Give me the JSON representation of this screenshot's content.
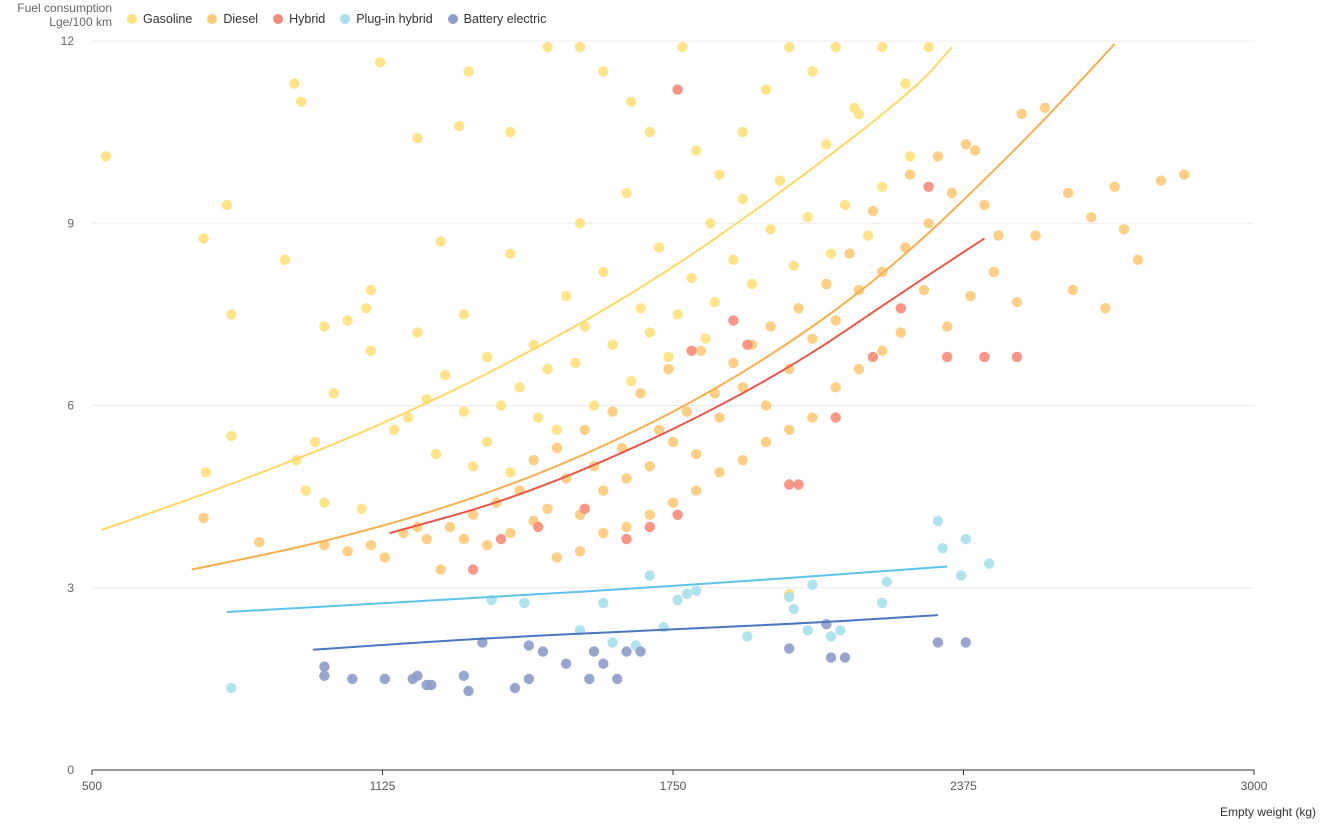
{
  "chart_data": {
    "type": "scatter",
    "ylabel_line1": "Fuel consumption",
    "ylabel_line2": "Lge/100 km",
    "xlabel": "Empty weight (kg)",
    "xlim": [
      500,
      3000
    ],
    "ylim": [
      0,
      12
    ],
    "x_ticks": [
      500,
      1125,
      1750,
      2375,
      3000
    ],
    "y_ticks": [
      0,
      3,
      6,
      9,
      12
    ],
    "grid": "horizontal",
    "legend_position": "top-left",
    "series": [
      {
        "name": "Gasoline",
        "color": "#ffe180",
        "line_color": "#ffd966",
        "trend": [
          [
            520,
            3.95
          ],
          [
            800,
            4.7
          ],
          [
            1100,
            5.6
          ],
          [
            1400,
            6.7
          ],
          [
            1700,
            8.0
          ],
          [
            2000,
            9.6
          ],
          [
            2270,
            11.2
          ],
          [
            2350,
            11.9
          ]
        ],
        "points": [
          [
            530,
            10.1
          ],
          [
            740,
            8.75
          ],
          [
            790,
            9.3
          ],
          [
            800,
            7.5
          ],
          [
            800,
            5.5
          ],
          [
            745,
            4.9
          ],
          [
            915,
            8.4
          ],
          [
            935,
            11.3
          ],
          [
            950,
            11.0
          ],
          [
            1000,
            7.3
          ],
          [
            1050,
            7.4
          ],
          [
            1090,
            7.6
          ],
          [
            1100,
            7.9
          ],
          [
            1120,
            11.65
          ],
          [
            1200,
            10.4
          ],
          [
            1250,
            8.7
          ],
          [
            1290,
            10.6
          ],
          [
            1310,
            11.5
          ],
          [
            1400,
            10.5
          ],
          [
            1480,
            11.9
          ],
          [
            1550,
            11.9
          ],
          [
            1600,
            11.5
          ],
          [
            1660,
            11.0
          ],
          [
            1700,
            10.5
          ],
          [
            1770,
            11.9
          ],
          [
            1800,
            10.2
          ],
          [
            1850,
            9.8
          ],
          [
            1900,
            10.5
          ],
          [
            1950,
            11.2
          ],
          [
            2000,
            11.9
          ],
          [
            2050,
            11.5
          ],
          [
            2100,
            11.9
          ],
          [
            2150,
            10.8
          ],
          [
            2200,
            11.9
          ],
          [
            2250,
            11.3
          ],
          [
            2300,
            11.9
          ],
          [
            1650,
            9.5
          ],
          [
            1550,
            9.0
          ],
          [
            1400,
            8.5
          ],
          [
            1300,
            7.5
          ],
          [
            1200,
            7.2
          ],
          [
            1100,
            6.9
          ],
          [
            1020,
            6.2
          ],
          [
            980,
            5.4
          ],
          [
            960,
            4.6
          ],
          [
            940,
            5.1
          ],
          [
            1000,
            4.4
          ],
          [
            1080,
            4.3
          ],
          [
            1180,
            5.8
          ],
          [
            1260,
            6.5
          ],
          [
            1350,
            6.8
          ],
          [
            1450,
            7.0
          ],
          [
            1560,
            7.3
          ],
          [
            1680,
            7.6
          ],
          [
            1790,
            8.1
          ],
          [
            1880,
            8.4
          ],
          [
            1960,
            8.9
          ],
          [
            2040,
            9.1
          ],
          [
            2120,
            9.3
          ],
          [
            2200,
            9.6
          ],
          [
            2260,
            10.1
          ],
          [
            1300,
            5.9
          ],
          [
            1350,
            5.4
          ],
          [
            1420,
            6.3
          ],
          [
            1480,
            6.6
          ],
          [
            1520,
            7.8
          ],
          [
            1600,
            8.2
          ],
          [
            1720,
            8.6
          ],
          [
            1830,
            9.0
          ],
          [
            1900,
            9.4
          ],
          [
            1980,
            9.7
          ],
          [
            2080,
            10.3
          ],
          [
            2140,
            10.9
          ],
          [
            1150,
            5.6
          ],
          [
            1220,
            6.1
          ],
          [
            1380,
            6.0
          ],
          [
            1460,
            5.8
          ],
          [
            1540,
            6.7
          ],
          [
            1620,
            7.0
          ],
          [
            1700,
            7.2
          ],
          [
            1760,
            7.5
          ],
          [
            1840,
            7.7
          ],
          [
            1920,
            8.0
          ],
          [
            2010,
            8.3
          ],
          [
            2090,
            8.5
          ],
          [
            2170,
            8.8
          ],
          [
            1240,
            5.2
          ],
          [
            1320,
            5.0
          ],
          [
            1400,
            4.9
          ],
          [
            1500,
            5.6
          ],
          [
            1580,
            6.0
          ],
          [
            1660,
            6.4
          ],
          [
            1740,
            6.8
          ],
          [
            1820,
            7.1
          ],
          [
            2000,
            2.9
          ]
        ]
      },
      {
        "name": "Diesel",
        "color": "#ffc97a",
        "line_color": "#f5b04f",
        "trend": [
          [
            715,
            3.3
          ],
          [
            1000,
            3.75
          ],
          [
            1300,
            4.4
          ],
          [
            1600,
            5.3
          ],
          [
            1900,
            6.5
          ],
          [
            2200,
            8.1
          ],
          [
            2500,
            10.3
          ],
          [
            2700,
            11.95
          ]
        ],
        "points": [
          [
            740,
            4.15
          ],
          [
            860,
            3.75
          ],
          [
            1000,
            3.7
          ],
          [
            1050,
            3.6
          ],
          [
            1100,
            3.7
          ],
          [
            1130,
            3.5
          ],
          [
            1200,
            4.0
          ],
          [
            1250,
            3.3
          ],
          [
            1300,
            3.8
          ],
          [
            1350,
            3.7
          ],
          [
            1400,
            3.9
          ],
          [
            1450,
            4.1
          ],
          [
            1500,
            3.5
          ],
          [
            1550,
            4.2
          ],
          [
            1600,
            4.6
          ],
          [
            1650,
            4.8
          ],
          [
            1700,
            5.0
          ],
          [
            1750,
            5.4
          ],
          [
            1800,
            5.2
          ],
          [
            1850,
            5.8
          ],
          [
            1900,
            6.3
          ],
          [
            1950,
            6.0
          ],
          [
            2000,
            6.6
          ],
          [
            2050,
            7.1
          ],
          [
            2100,
            7.4
          ],
          [
            2150,
            7.9
          ],
          [
            2200,
            8.2
          ],
          [
            2250,
            8.6
          ],
          [
            2300,
            9.0
          ],
          [
            2350,
            9.5
          ],
          [
            2380,
            10.3
          ],
          [
            2420,
            9.3
          ],
          [
            2450,
            8.8
          ],
          [
            2500,
            10.8
          ],
          [
            2550,
            10.9
          ],
          [
            2600,
            9.5
          ],
          [
            2650,
            9.1
          ],
          [
            2700,
            9.6
          ],
          [
            2750,
            8.4
          ],
          [
            2800,
            9.7
          ],
          [
            2850,
            9.8
          ],
          [
            2720,
            8.9
          ],
          [
            2680,
            7.6
          ],
          [
            2610,
            7.9
          ],
          [
            2530,
            8.8
          ],
          [
            2490,
            7.7
          ],
          [
            2440,
            8.2
          ],
          [
            2390,
            7.8
          ],
          [
            2340,
            7.3
          ],
          [
            2290,
            7.9
          ],
          [
            2240,
            7.2
          ],
          [
            2200,
            6.9
          ],
          [
            2150,
            6.6
          ],
          [
            2100,
            6.3
          ],
          [
            2050,
            5.8
          ],
          [
            2000,
            5.6
          ],
          [
            1950,
            5.4
          ],
          [
            1900,
            5.1
          ],
          [
            1850,
            4.9
          ],
          [
            1800,
            4.6
          ],
          [
            1750,
            4.4
          ],
          [
            1700,
            4.2
          ],
          [
            1650,
            4.0
          ],
          [
            1600,
            3.9
          ],
          [
            1550,
            3.6
          ],
          [
            1480,
            4.3
          ],
          [
            1420,
            4.6
          ],
          [
            1370,
            4.4
          ],
          [
            1320,
            4.2
          ],
          [
            1270,
            4.0
          ],
          [
            1220,
            3.8
          ],
          [
            1170,
            3.9
          ],
          [
            1520,
            4.8
          ],
          [
            1580,
            5.0
          ],
          [
            1640,
            5.3
          ],
          [
            1720,
            5.6
          ],
          [
            1780,
            5.9
          ],
          [
            1840,
            6.2
          ],
          [
            1880,
            6.7
          ],
          [
            1920,
            7.0
          ],
          [
            1960,
            7.3
          ],
          [
            2020,
            7.6
          ],
          [
            2080,
            8.0
          ],
          [
            2130,
            8.5
          ],
          [
            2180,
            9.2
          ],
          [
            2260,
            9.8
          ],
          [
            2320,
            10.1
          ],
          [
            2400,
            10.2
          ],
          [
            1450,
            5.1
          ],
          [
            1500,
            5.3
          ],
          [
            1560,
            5.6
          ],
          [
            1620,
            5.9
          ],
          [
            1680,
            6.2
          ],
          [
            1740,
            6.6
          ],
          [
            1810,
            6.9
          ]
        ]
      },
      {
        "name": "Hybrid",
        "color": "#f78b7a",
        "line_color": "#e9574a",
        "trend": [
          [
            1140,
            3.9
          ],
          [
            1400,
            4.45
          ],
          [
            1700,
            5.4
          ],
          [
            2000,
            6.6
          ],
          [
            2250,
            7.9
          ],
          [
            2420,
            8.75
          ]
        ],
        "points": [
          [
            1320,
            3.3
          ],
          [
            1380,
            3.8
          ],
          [
            1460,
            4.0
          ],
          [
            1560,
            4.3
          ],
          [
            1650,
            3.8
          ],
          [
            1700,
            4.0
          ],
          [
            1760,
            4.2
          ],
          [
            1790,
            6.9
          ],
          [
            1880,
            7.4
          ],
          [
            1910,
            7.0
          ],
          [
            2000,
            4.7
          ],
          [
            2020,
            4.7
          ],
          [
            2100,
            5.8
          ],
          [
            2180,
            6.8
          ],
          [
            2240,
            7.6
          ],
          [
            2300,
            9.6
          ],
          [
            2340,
            6.8
          ],
          [
            2420,
            6.8
          ],
          [
            2490,
            6.8
          ],
          [
            1760,
            11.2
          ]
        ]
      },
      {
        "name": "Plug-in hybrid",
        "color": "#a8e0ec",
        "line_color": "#5bc4ea",
        "trend": [
          [
            790,
            2.6
          ],
          [
            1300,
            2.82
          ],
          [
            1800,
            3.05
          ],
          [
            2340,
            3.35
          ]
        ],
        "points": [
          [
            800,
            1.35
          ],
          [
            1360,
            2.8
          ],
          [
            1430,
            2.75
          ],
          [
            1550,
            2.3
          ],
          [
            1600,
            2.75
          ],
          [
            1620,
            2.1
          ],
          [
            1670,
            2.05
          ],
          [
            1700,
            3.2
          ],
          [
            1730,
            2.35
          ],
          [
            1760,
            2.8
          ],
          [
            1780,
            2.9
          ],
          [
            1800,
            2.95
          ],
          [
            1910,
            2.2
          ],
          [
            2000,
            2.85
          ],
          [
            2010,
            2.65
          ],
          [
            2040,
            2.3
          ],
          [
            2050,
            3.05
          ],
          [
            2090,
            2.2
          ],
          [
            2110,
            2.3
          ],
          [
            2200,
            2.75
          ],
          [
            2210,
            3.1
          ],
          [
            2320,
            4.1
          ],
          [
            2330,
            3.65
          ],
          [
            2370,
            3.2
          ],
          [
            2380,
            3.8
          ],
          [
            2430,
            3.4
          ]
        ]
      },
      {
        "name": "Battery electric",
        "color": "#8d9cca",
        "line_color": "#4a77c0",
        "trend": [
          [
            975,
            1.98
          ],
          [
            1300,
            2.15
          ],
          [
            1700,
            2.3
          ],
          [
            2050,
            2.42
          ],
          [
            2320,
            2.55
          ]
        ],
        "points": [
          [
            1000,
            1.7
          ],
          [
            1000,
            1.55
          ],
          [
            1060,
            1.5
          ],
          [
            1130,
            1.5
          ],
          [
            1190,
            1.5
          ],
          [
            1200,
            1.55
          ],
          [
            1220,
            1.4
          ],
          [
            1230,
            1.4
          ],
          [
            1300,
            1.55
          ],
          [
            1310,
            1.3
          ],
          [
            1340,
            2.1
          ],
          [
            1410,
            1.35
          ],
          [
            1440,
            2.05
          ],
          [
            1440,
            1.5
          ],
          [
            1470,
            1.95
          ],
          [
            1520,
            1.75
          ],
          [
            1570,
            1.5
          ],
          [
            1580,
            1.95
          ],
          [
            1600,
            1.75
          ],
          [
            1630,
            1.5
          ],
          [
            1650,
            1.95
          ],
          [
            1680,
            1.95
          ],
          [
            2000,
            2.0
          ],
          [
            2080,
            2.4
          ],
          [
            2090,
            1.85
          ],
          [
            2120,
            1.85
          ],
          [
            2320,
            2.1
          ],
          [
            2380,
            2.1
          ]
        ]
      }
    ]
  }
}
